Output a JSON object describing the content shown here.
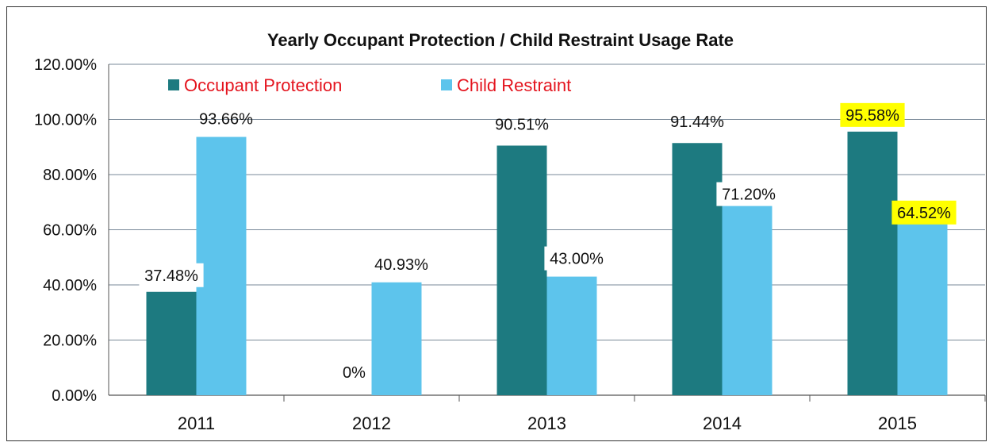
{
  "chart_data": {
    "type": "bar",
    "title": "Yearly Occupant Protection / Child Restraint Usage Rate",
    "categories": [
      "2011",
      "2012",
      "2013",
      "2014",
      "2015"
    ],
    "series": [
      {
        "name": "Occupant Protection",
        "color": "#1d7a80",
        "values": [
          37.48,
          0,
          90.51,
          91.44,
          95.58
        ],
        "labels": [
          "37.48%",
          "0%",
          "90.51%",
          "91.44%",
          "95.58%"
        ],
        "highlighted": [
          false,
          false,
          false,
          false,
          true
        ]
      },
      {
        "name": "Child Restraint",
        "color": "#5dc4ec",
        "values": [
          93.66,
          40.93,
          43.0,
          71.2,
          64.52
        ],
        "labels": [
          "93.66%",
          "40.93%",
          "43.00%",
          "71.20%",
          "64.52%"
        ],
        "highlighted": [
          false,
          false,
          false,
          false,
          true
        ]
      }
    ],
    "y_ticks": [
      "0.00%",
      "20.00%",
      "40.00%",
      "60.00%",
      "80.00%",
      "100.00%",
      "120.00%"
    ],
    "ylim": [
      0,
      120
    ],
    "grid": true,
    "legend_position": "top-left",
    "legend_text_color": "#e4141e",
    "highlight_color": "#ffff00"
  }
}
